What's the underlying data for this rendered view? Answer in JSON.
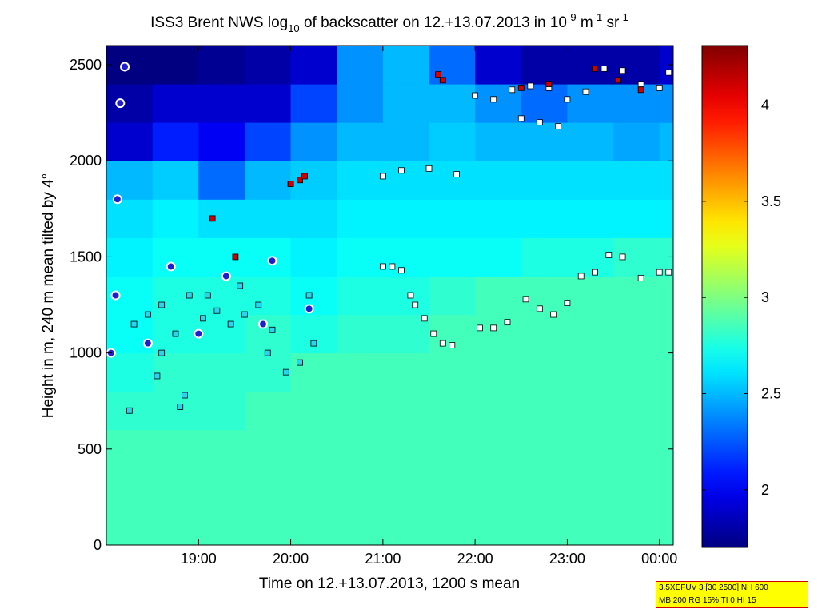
{
  "chart_data": {
    "type": "heatmap",
    "title": {
      "a": "ISS3 Brent NWS log",
      "b": "10",
      "c": " of backscatter on 12.+13.07.2013 in 10",
      "d": "-9",
      "e": " m",
      "f": "-1",
      "g": " sr",
      "h": "-1"
    },
    "xlabel": "Time on 12.+13.07.2013, 1200 s mean",
    "ylabel": "Height in m, 240 m mean tilted by 4°",
    "xlim": [
      18.0,
      24.15
    ],
    "xticks": [
      {
        "value": 19,
        "label": "19:00"
      },
      {
        "value": 20,
        "label": "20:00"
      },
      {
        "value": 21,
        "label": "21:00"
      },
      {
        "value": 22,
        "label": "22:00"
      },
      {
        "value": 23,
        "label": "23:00"
      },
      {
        "value": 24,
        "label": "00:00"
      }
    ],
    "ylim": [
      0,
      2600
    ],
    "yticks": [
      0,
      500,
      1000,
      1500,
      2000,
      2500
    ],
    "clim": [
      1.7,
      4.31
    ],
    "cticks": [
      2,
      2.5,
      3,
      3.5,
      4
    ],
    "colormap": "jet",
    "xbins": [
      18.0,
      18.5,
      19.0,
      19.5,
      20.0,
      20.5,
      21.0,
      21.5,
      22.0,
      22.5,
      23.0,
      23.5,
      24.0,
      24.15
    ],
    "ybins": [
      0,
      200,
      400,
      600,
      800,
      1000,
      1200,
      1400,
      1600,
      1800,
      2000,
      2200,
      2400,
      2600
    ],
    "z": [
      [
        2.85,
        2.85,
        2.85,
        2.85,
        2.85,
        2.85,
        2.85,
        2.85,
        2.85,
        2.85,
        2.85,
        2.85,
        2.85
      ],
      [
        2.85,
        2.85,
        2.85,
        2.85,
        2.85,
        2.85,
        2.85,
        2.85,
        2.85,
        2.85,
        2.85,
        2.85,
        2.85
      ],
      [
        2.85,
        2.85,
        2.85,
        2.85,
        2.85,
        2.85,
        2.85,
        2.85,
        2.85,
        2.85,
        2.85,
        2.85,
        2.85
      ],
      [
        2.8,
        2.8,
        2.8,
        2.85,
        2.85,
        2.85,
        2.85,
        2.85,
        2.85,
        2.85,
        2.85,
        2.85,
        2.85
      ],
      [
        2.75,
        2.8,
        2.8,
        2.8,
        2.85,
        2.85,
        2.85,
        2.85,
        2.85,
        2.85,
        2.85,
        2.85,
        2.85
      ],
      [
        2.7,
        2.75,
        2.75,
        2.8,
        2.75,
        2.8,
        2.8,
        2.85,
        2.85,
        2.85,
        2.85,
        2.85,
        2.85
      ],
      [
        2.7,
        2.75,
        2.75,
        2.75,
        2.7,
        2.75,
        2.75,
        2.8,
        2.85,
        2.85,
        2.85,
        2.85,
        2.85
      ],
      [
        2.65,
        2.7,
        2.7,
        2.7,
        2.65,
        2.7,
        2.7,
        2.7,
        2.7,
        2.75,
        2.75,
        2.8,
        2.8
      ],
      [
        2.6,
        2.65,
        2.6,
        2.6,
        2.6,
        2.65,
        2.65,
        2.65,
        2.65,
        2.65,
        2.65,
        2.65,
        2.65
      ],
      [
        2.5,
        2.55,
        2.3,
        2.5,
        2.55,
        2.6,
        2.6,
        2.6,
        2.6,
        2.6,
        2.6,
        2.6,
        2.6
      ],
      [
        1.9,
        2.1,
        2.0,
        2.2,
        2.4,
        2.5,
        2.5,
        2.55,
        2.5,
        2.5,
        2.5,
        2.45,
        2.5
      ],
      [
        1.8,
        1.9,
        1.9,
        1.9,
        2.2,
        2.4,
        2.5,
        2.5,
        2.4,
        2.3,
        2.4,
        2.4,
        2.4
      ],
      [
        1.7,
        1.7,
        1.75,
        1.8,
        1.9,
        2.4,
        2.5,
        2.3,
        1.9,
        1.8,
        1.8,
        1.8,
        1.9
      ]
    ],
    "markers": [
      {
        "color": "#ffffff",
        "x": [
          21.0,
          21.1,
          21.2,
          21.3,
          21.35,
          21.45,
          21.55,
          21.65,
          21.75,
          22.05,
          22.2,
          22.35,
          22.55,
          22.7,
          22.85,
          23.0,
          23.15,
          23.3,
          23.45,
          23.6,
          23.8,
          24.0,
          24.1,
          21.0,
          21.2,
          21.5,
          21.8,
          22.0,
          22.2,
          22.4,
          22.6,
          22.8,
          23.0,
          23.2,
          23.4,
          23.6,
          23.8,
          24.0,
          24.1,
          22.5,
          22.7,
          22.9
        ],
        "y": [
          1450,
          1450,
          1430,
          1300,
          1250,
          1180,
          1100,
          1050,
          1040,
          1130,
          1130,
          1160,
          1280,
          1230,
          1200,
          1260,
          1400,
          1420,
          1510,
          1500,
          1390,
          1420,
          1420,
          1920,
          1950,
          1960,
          1930,
          2340,
          2320,
          2370,
          2390,
          2380,
          2320,
          2360,
          2480,
          2470,
          2400,
          2380,
          2460,
          2220,
          2200,
          2180
        ]
      },
      {
        "color": "#d00000",
        "x": [
          20.0,
          20.1,
          20.15,
          21.6,
          21.65,
          22.5,
          22.8,
          23.3,
          23.55,
          23.8,
          19.15,
          19.4
        ],
        "y": [
          1880,
          1900,
          1920,
          2450,
          2420,
          2380,
          2400,
          2480,
          2420,
          2370,
          1700,
          1500
        ]
      },
      {
        "color": "#2ad4f0",
        "x": [
          18.3,
          18.45,
          18.6,
          18.75,
          18.9,
          19.05,
          19.2,
          19.35,
          19.5,
          19.65,
          19.8,
          19.95,
          20.1,
          20.25,
          18.25,
          18.55,
          18.85,
          19.1,
          19.45,
          19.75,
          20.2,
          18.6,
          18.8
        ],
        "y": [
          1150,
          1200,
          1250,
          1100,
          1300,
          1180,
          1220,
          1150,
          1200,
          1250,
          1120,
          900,
          950,
          1050,
          700,
          880,
          780,
          1300,
          1350,
          1000,
          1300,
          1000,
          720
        ]
      },
      {
        "color": "#1f1fcf",
        "x": [
          18.05,
          18.1,
          18.12,
          18.15,
          18.2,
          18.45,
          18.7,
          19.0,
          19.3,
          19.7,
          19.8,
          20.2
        ],
        "y": [
          1000,
          1300,
          1800,
          2300,
          2490,
          1050,
          1450,
          1100,
          1400,
          1150,
          1480,
          1230
        ]
      }
    ],
    "infobox": [
      "3.5XEFUV 3 [30 2500] NH 600",
      "MB 200 RG 15% TI 0 HI 15"
    ]
  }
}
